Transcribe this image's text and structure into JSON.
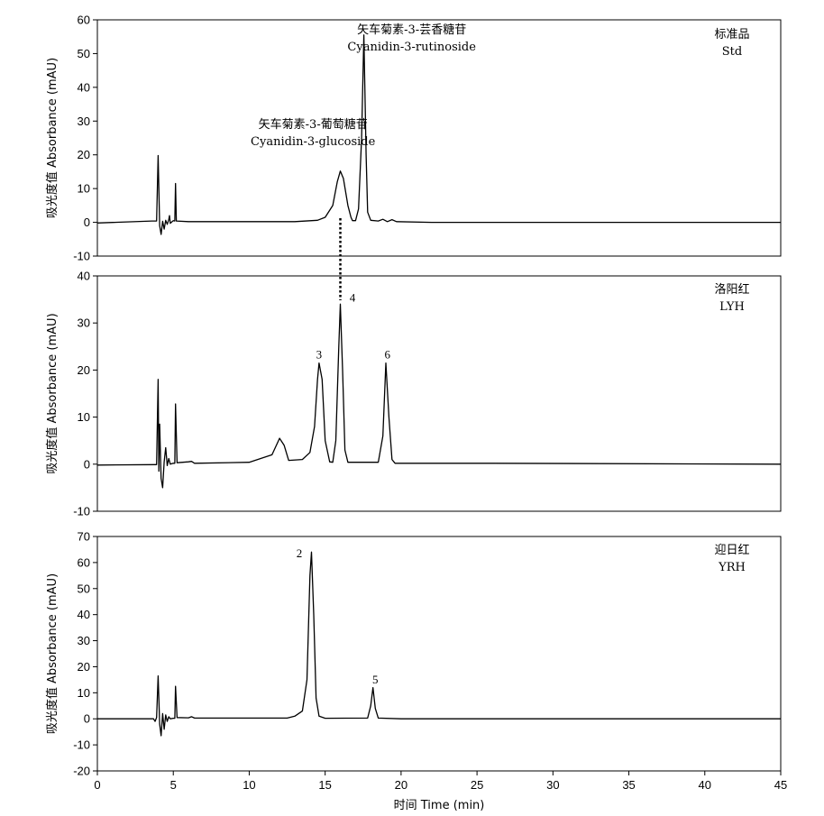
{
  "chart_data": [
    {
      "type": "line",
      "id": "std",
      "ylabel": "吸光度值 Absorbance (mAU)",
      "ylim": [
        -10,
        60
      ],
      "yticks": [
        -10,
        0,
        10,
        20,
        30,
        40,
        50,
        60
      ],
      "xlim": [
        0,
        45
      ],
      "sample_label": [
        "标准品",
        "Std"
      ],
      "annotations": [
        {
          "lines": [
            "矢车菊素-3-葡萄糖苷",
            "Cyanidin-3-glucoside"
          ],
          "x": 14.2,
          "y": 28
        },
        {
          "lines": [
            "矢车菊素-3-芸香糖苷",
            "Cyanidin-3-rutinoside"
          ],
          "x": 20.7,
          "y": 56
        }
      ],
      "peak_labels": [],
      "series": [
        {
          "points": [
            [
              0.0,
              -0.2
            ],
            [
              3.6,
              0.4
            ],
            [
              3.9,
              0.4
            ],
            [
              4.0,
              19.8
            ],
            [
              4.1,
              -1.0
            ],
            [
              4.2,
              -3.6
            ],
            [
              4.3,
              0.3
            ],
            [
              4.4,
              -2.0
            ],
            [
              4.5,
              0.6
            ],
            [
              4.6,
              -0.6
            ],
            [
              4.7,
              0.8
            ],
            [
              4.75,
              2.0
            ],
            [
              4.8,
              -0.3
            ],
            [
              5.0,
              0.5
            ],
            [
              5.1,
              0.4
            ],
            [
              5.15,
              11.5
            ],
            [
              5.2,
              0.4
            ],
            [
              6.0,
              0.2
            ],
            [
              13.0,
              0.2
            ],
            [
              14.5,
              0.6
            ],
            [
              15.0,
              1.5
            ],
            [
              15.5,
              5.0
            ],
            [
              15.8,
              12.0
            ],
            [
              16.0,
              15.2
            ],
            [
              16.2,
              13.0
            ],
            [
              16.5,
              5.0
            ],
            [
              16.7,
              1.5
            ],
            [
              16.8,
              0.5
            ],
            [
              17.0,
              0.5
            ],
            [
              17.2,
              4.0
            ],
            [
              17.4,
              25.0
            ],
            [
              17.55,
              55.5
            ],
            [
              17.7,
              20.0
            ],
            [
              17.8,
              3.0
            ],
            [
              18.0,
              0.6
            ],
            [
              18.5,
              0.4
            ],
            [
              18.8,
              0.9
            ],
            [
              19.1,
              0.2
            ],
            [
              19.4,
              0.8
            ],
            [
              19.7,
              0.2
            ],
            [
              22.0,
              0.0
            ],
            [
              45.0,
              0.0
            ]
          ]
        }
      ]
    },
    {
      "type": "line",
      "id": "lyh",
      "ylabel": "吸光度值 Absorbance (mAU)",
      "ylim": [
        -10,
        40
      ],
      "yticks": [
        -10,
        0,
        10,
        20,
        30,
        40
      ],
      "xlim": [
        0,
        45
      ],
      "sample_label": [
        "洛阳红",
        "LYH"
      ],
      "annotations": [],
      "peak_labels": [
        {
          "text": "3",
          "x": 14.6,
          "y": 22.5
        },
        {
          "text": "4",
          "x": 16.8,
          "y": 34.5
        },
        {
          "text": "6",
          "x": 19.1,
          "y": 22.5
        }
      ],
      "series": [
        {
          "points": [
            [
              0.0,
              -0.2
            ],
            [
              3.8,
              -0.1
            ],
            [
              3.9,
              -0.1
            ],
            [
              4.0,
              18.0
            ],
            [
              4.05,
              -1.5
            ],
            [
              4.1,
              8.5
            ],
            [
              4.2,
              -3.0
            ],
            [
              4.3,
              -5.0
            ],
            [
              4.4,
              0.5
            ],
            [
              4.5,
              3.5
            ],
            [
              4.6,
              -0.3
            ],
            [
              4.7,
              1.2
            ],
            [
              4.8,
              0.0
            ],
            [
              5.0,
              0.2
            ],
            [
              5.1,
              0.2
            ],
            [
              5.15,
              12.8
            ],
            [
              5.25,
              0.3
            ],
            [
              6.0,
              0.5
            ],
            [
              6.2,
              0.6
            ],
            [
              6.4,
              0.2
            ],
            [
              10.0,
              0.4
            ],
            [
              11.5,
              2.0
            ],
            [
              12.0,
              5.5
            ],
            [
              12.3,
              4.0
            ],
            [
              12.6,
              0.8
            ],
            [
              13.5,
              1.0
            ],
            [
              14.0,
              2.5
            ],
            [
              14.3,
              8.0
            ],
            [
              14.5,
              18.0
            ],
            [
              14.6,
              21.5
            ],
            [
              14.8,
              18.0
            ],
            [
              15.0,
              5.0
            ],
            [
              15.3,
              0.5
            ],
            [
              15.5,
              0.4
            ],
            [
              15.7,
              5.0
            ],
            [
              15.9,
              25.0
            ],
            [
              16.0,
              34.0
            ],
            [
              16.15,
              20.0
            ],
            [
              16.3,
              3.0
            ],
            [
              16.5,
              0.4
            ],
            [
              18.5,
              0.4
            ],
            [
              18.8,
              6.0
            ],
            [
              19.0,
              21.5
            ],
            [
              19.2,
              10.0
            ],
            [
              19.4,
              1.0
            ],
            [
              19.6,
              0.2
            ],
            [
              26.0,
              0.2
            ],
            [
              45.0,
              0.0
            ]
          ]
        }
      ]
    },
    {
      "type": "line",
      "id": "yrh",
      "ylabel": "吸光度值 Absorbance (mAU)",
      "ylim": [
        -20,
        70
      ],
      "yticks": [
        -20,
        -10,
        0,
        10,
        20,
        30,
        40,
        50,
        60,
        70
      ],
      "xlim": [
        0,
        45
      ],
      "xticks": [
        0,
        5,
        10,
        15,
        20,
        25,
        30,
        35,
        40,
        45
      ],
      "xlabel": "时间 Time (min)",
      "sample_label": [
        "迎日红",
        "YRH"
      ],
      "annotations": [],
      "peak_labels": [
        {
          "text": "2",
          "x": 13.3,
          "y": 62
        },
        {
          "text": "5",
          "x": 18.3,
          "y": 13.5
        }
      ],
      "series": [
        {
          "points": [
            [
              0.0,
              0.0
            ],
            [
              3.7,
              0.0
            ],
            [
              3.8,
              -1.0
            ],
            [
              3.9,
              0.5
            ],
            [
              4.0,
              16.5
            ],
            [
              4.1,
              -2.0
            ],
            [
              4.2,
              -6.5
            ],
            [
              4.3,
              2.0
            ],
            [
              4.4,
              -4.0
            ],
            [
              4.5,
              1.5
            ],
            [
              4.6,
              -1.0
            ],
            [
              4.7,
              0.8
            ],
            [
              4.8,
              0.0
            ],
            [
              5.0,
              0.2
            ],
            [
              5.1,
              0.2
            ],
            [
              5.15,
              12.5
            ],
            [
              5.25,
              0.5
            ],
            [
              6.0,
              0.4
            ],
            [
              6.2,
              0.8
            ],
            [
              6.4,
              0.3
            ],
            [
              12.5,
              0.3
            ],
            [
              13.0,
              1.0
            ],
            [
              13.5,
              3.0
            ],
            [
              13.8,
              15.0
            ],
            [
              14.0,
              55.0
            ],
            [
              14.1,
              64.0
            ],
            [
              14.25,
              40.0
            ],
            [
              14.4,
              8.0
            ],
            [
              14.6,
              1.0
            ],
            [
              15.0,
              0.2
            ],
            [
              17.8,
              0.3
            ],
            [
              18.0,
              5.0
            ],
            [
              18.15,
              12.0
            ],
            [
              18.3,
              4.0
            ],
            [
              18.5,
              0.3
            ],
            [
              20.0,
              0.0
            ],
            [
              45.0,
              0.0
            ]
          ]
        }
      ]
    }
  ]
}
